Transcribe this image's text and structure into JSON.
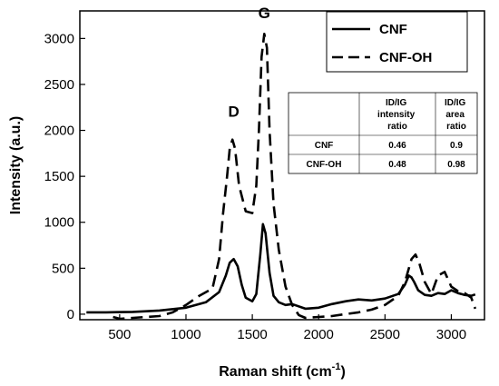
{
  "chart_data": {
    "type": "line",
    "xlabel": "Raman shift (cm",
    "xlabel_sup": "-1",
    "xlabel_end": ")",
    "ylabel": "Intensity (a.u.)",
    "xlim": [
      200,
      3250
    ],
    "ylim": [
      -60,
      3300
    ],
    "xticks": [
      500,
      1000,
      1500,
      2000,
      2500,
      3000
    ],
    "yticks": [
      0,
      500,
      1000,
      1500,
      2000,
      2500,
      3000
    ],
    "grid": false,
    "legend_position": "top-right",
    "annotations": [
      {
        "text": "D",
        "x": 1360,
        "y": 2150
      },
      {
        "text": "G",
        "x": 1590,
        "y": 3220
      }
    ],
    "series": [
      {
        "name": "CNF",
        "style": "solid",
        "x": [
          250,
          400,
          600,
          800,
          1000,
          1150,
          1250,
          1300,
          1330,
          1360,
          1390,
          1420,
          1450,
          1500,
          1530,
          1560,
          1580,
          1600,
          1630,
          1660,
          1700,
          1750,
          1800,
          1900,
          2000,
          2100,
          2200,
          2300,
          2400,
          2500,
          2600,
          2650,
          2680,
          2700,
          2720,
          2750,
          2800,
          2850,
          2900,
          2950,
          3000,
          3050,
          3100,
          3150,
          3180
        ],
        "y": [
          20,
          20,
          25,
          40,
          70,
          130,
          240,
          420,
          560,
          600,
          520,
          320,
          180,
          140,
          220,
          650,
          980,
          880,
          450,
          200,
          130,
          100,
          110,
          60,
          70,
          110,
          140,
          160,
          150,
          170,
          220,
          320,
          420,
          400,
          350,
          260,
          210,
          200,
          230,
          220,
          260,
          230,
          210,
          200,
          215
        ]
      },
      {
        "name": "CNF-OH",
        "style": "dashed",
        "x": [
          450,
          500,
          600,
          700,
          800,
          900,
          1000,
          1100,
          1200,
          1250,
          1280,
          1310,
          1330,
          1350,
          1370,
          1400,
          1450,
          1500,
          1530,
          1550,
          1570,
          1590,
          1610,
          1630,
          1660,
          1700,
          1750,
          1800,
          1850,
          1900,
          2000,
          2100,
          2200,
          2300,
          2400,
          2500,
          2600,
          2650,
          2700,
          2730,
          2760,
          2800,
          2850,
          2900,
          2950,
          3000,
          3050,
          3100,
          3150,
          3180
        ],
        "y": [
          -30,
          -50,
          -40,
          -30,
          -20,
          20,
          100,
          200,
          280,
          600,
          1100,
          1500,
          1800,
          1900,
          1800,
          1400,
          1120,
          1100,
          1400,
          2000,
          2800,
          3050,
          2900,
          2000,
          1200,
          700,
          300,
          100,
          -10,
          -40,
          -30,
          -20,
          0,
          20,
          50,
          100,
          200,
          350,
          600,
          650,
          550,
          350,
          220,
          420,
          460,
          300,
          250,
          230,
          180,
          60
        ]
      }
    ],
    "table": {
      "headers": [
        "",
        "ID/IG intensity ratio",
        "ID/IG area ratio"
      ],
      "rows": [
        [
          "CNF",
          "0.46",
          "0.9"
        ],
        [
          "CNF-OH",
          "0.48",
          "0.98"
        ]
      ]
    }
  }
}
